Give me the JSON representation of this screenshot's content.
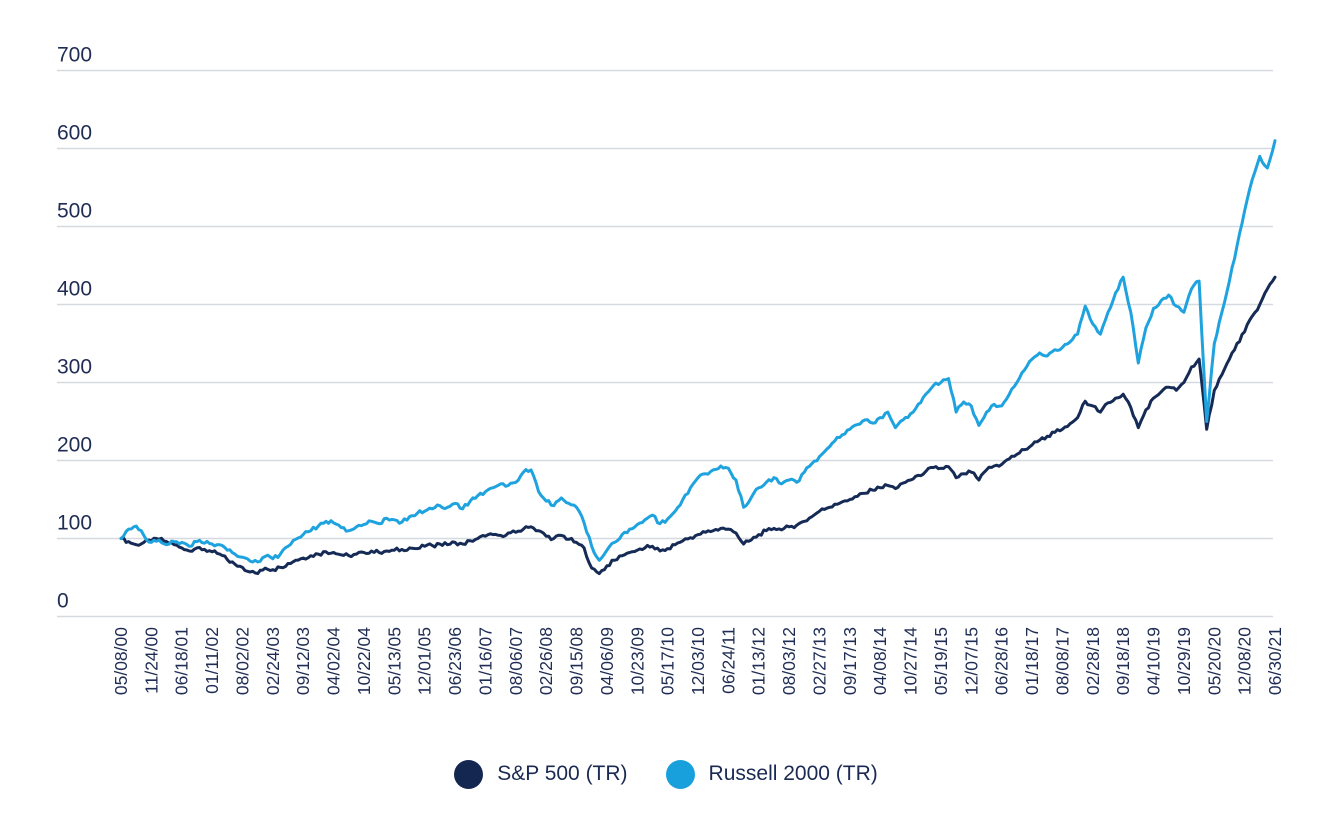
{
  "chart_data": {
    "type": "line",
    "title": "",
    "xlabel": "",
    "ylabel": "",
    "ylim": [
      0,
      700
    ],
    "yticks": [
      0,
      100,
      200,
      300,
      400,
      500,
      600,
      700
    ],
    "grid": "horizontal",
    "gridline_color": "#d6d9e0",
    "axis_text_color": "#1f2c54",
    "legend_position": "bottom-center",
    "x_tick_labels": [
      "05/08/00",
      "11/24/00",
      "06/18/01",
      "01/11/02",
      "08/02/02",
      "02/24/03",
      "09/12/03",
      "04/02/04",
      "10/22/04",
      "05/13/05",
      "12/01/05",
      "06/23/06",
      "01/16/07",
      "08/06/07",
      "02/26/08",
      "09/15/08",
      "04/06/09",
      "10/23/09",
      "05/17/10",
      "12/03/10",
      "06/24/11",
      "01/13/12",
      "08/03/12",
      "02/27/13",
      "09/17/13",
      "04/08/14",
      "10/27/14",
      "05/19/15",
      "12/07/15",
      "06/28/16",
      "01/18/17",
      "08/08/17",
      "02/28/18",
      "09/18/18",
      "04/10/19",
      "10/29/19",
      "05/20/20",
      "12/08/20",
      "06/30/21"
    ],
    "samples_per_tick_interval": 4,
    "series": [
      {
        "name": "S&P 500 (TR)",
        "color": "#152a54",
        "values": [
          100,
          96,
          92,
          95,
          97,
          99,
          96,
          92,
          88,
          84,
          88,
          86,
          83,
          80,
          73,
          67,
          63,
          57,
          55,
          62,
          60,
          63,
          68,
          72,
          75,
          78,
          80,
          83,
          82,
          79,
          78,
          80,
          82,
          84,
          82,
          84,
          85,
          86,
          88,
          87,
          90,
          91,
          93,
          92,
          95,
          93,
          97,
          100,
          103,
          105,
          104,
          107,
          108,
          112,
          115,
          110,
          103,
          100,
          104,
          99,
          95,
          88,
          62,
          55,
          65,
          72,
          78,
          82,
          85,
          88,
          90,
          84,
          87,
          92,
          97,
          101,
          105,
          108,
          110,
          113,
          112,
          107,
          93,
          98,
          105,
          110,
          113,
          111,
          115,
          117,
          122,
          128,
          135,
          139,
          144,
          147,
          150,
          154,
          158,
          162,
          165,
          168,
          164,
          171,
          175,
          181,
          186,
          191,
          190,
          192,
          178,
          183,
          185,
          175,
          188,
          193,
          195,
          202,
          208,
          214,
          220,
          226,
          231,
          236,
          240,
          247,
          255,
          276,
          270,
          262,
          274,
          280,
          285,
          268,
          242,
          265,
          280,
          288,
          294,
          290,
          300,
          320,
          330,
          240,
          290,
          310,
          330,
          350,
          365,
          385,
          400,
          420,
          435
        ]
      },
      {
        "name": "Russell 2000 (TR)",
        "color": "#1fa3df",
        "values": [
          100,
          112,
          116,
          104,
          95,
          98,
          92,
          96,
          95,
          90,
          96,
          94,
          93,
          92,
          85,
          80,
          76,
          71,
          70,
          77,
          74,
          80,
          90,
          99,
          105,
          110,
          116,
          122,
          120,
          114,
          110,
          115,
          118,
          122,
          119,
          126,
          124,
          121,
          128,
          132,
          135,
          138,
          142,
          140,
          145,
          138,
          148,
          155,
          160,
          165,
          170,
          168,
          172,
          185,
          188,
          160,
          148,
          142,
          152,
          145,
          140,
          120,
          90,
          72,
          85,
          95,
          105,
          112,
          118,
          124,
          130,
          119,
          125,
          135,
          150,
          165,
          178,
          183,
          188,
          193,
          190,
          175,
          140,
          152,
          165,
          172,
          178,
          170,
          175,
          172,
          185,
          196,
          205,
          215,
          225,
          233,
          240,
          246,
          252,
          248,
          255,
          262,
          242,
          252,
          260,
          272,
          285,
          296,
          300,
          305,
          262,
          275,
          270,
          245,
          262,
          272,
          270,
          285,
          300,
          316,
          330,
          338,
          334,
          342,
          345,
          352,
          362,
          398,
          375,
          362,
          390,
          415,
          435,
          390,
          325,
          370,
          395,
          405,
          412,
          398,
          390,
          420,
          430,
          250,
          350,
          390,
          430,
          475,
          520,
          560,
          590,
          575,
          610
        ]
      }
    ]
  },
  "legend": {
    "items": [
      {
        "label": "S&P 500 (TR)",
        "color": "#142750"
      },
      {
        "label": "Russell 2000 (TR)",
        "color": "#18a0dc"
      }
    ]
  }
}
